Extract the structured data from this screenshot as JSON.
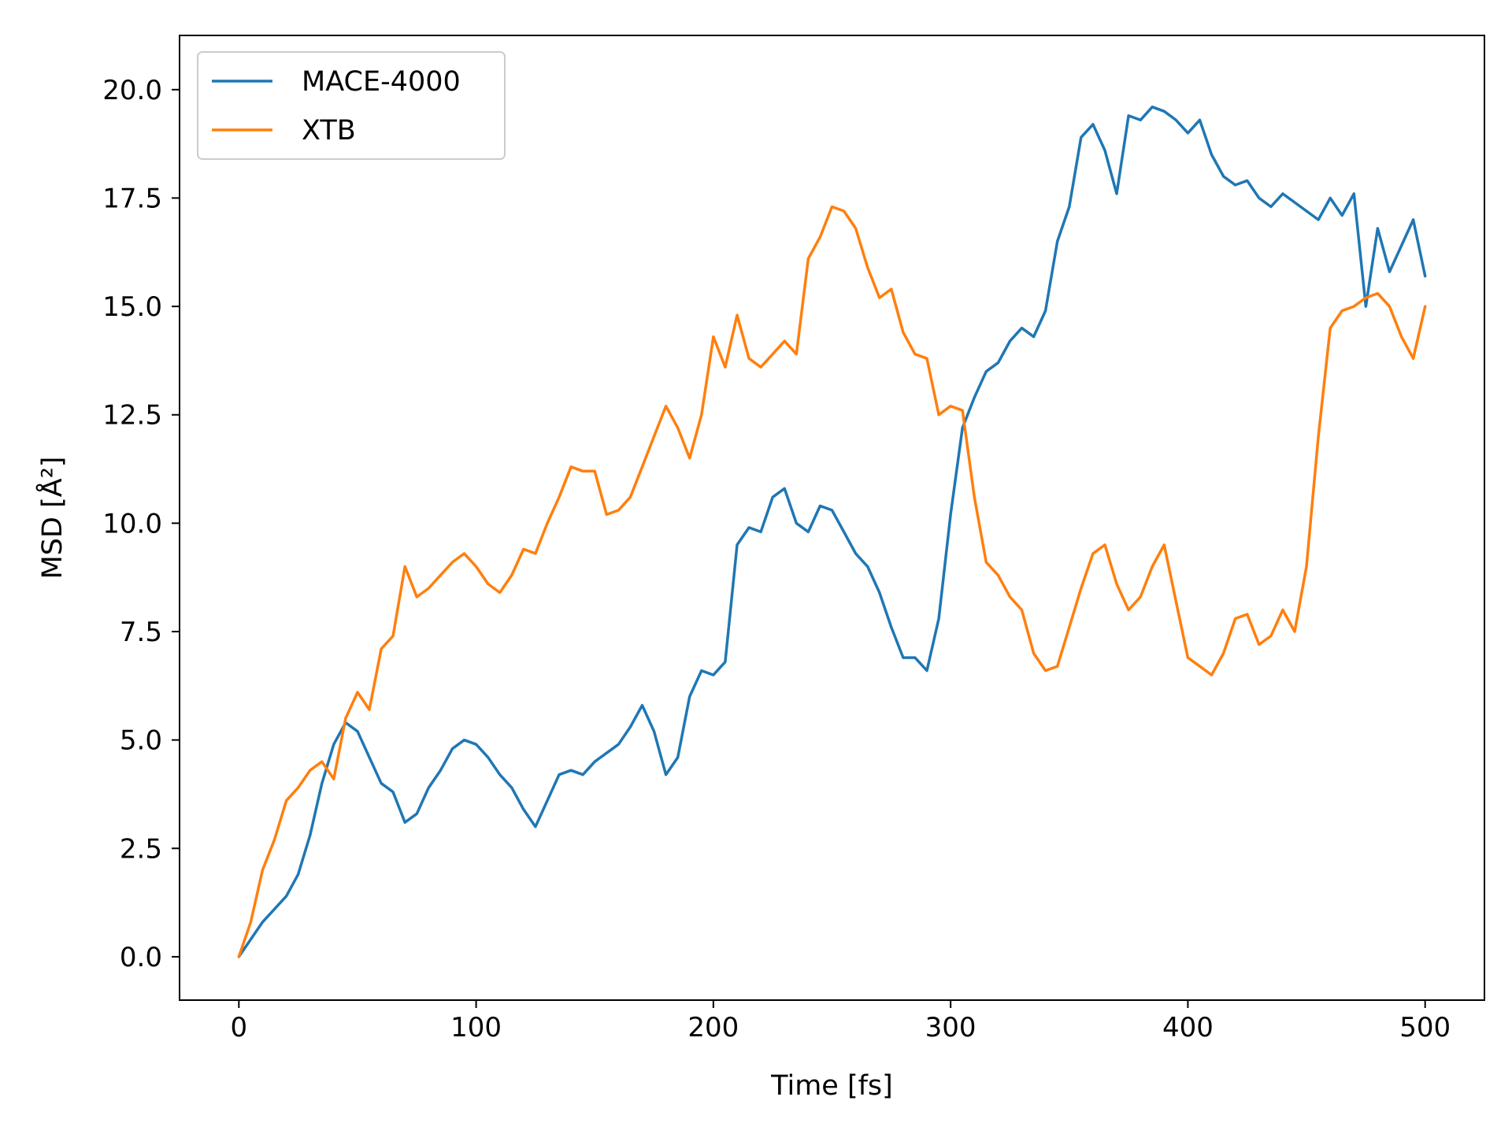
{
  "chart_data": {
    "type": "line",
    "xlabel": "Time [fs]",
    "ylabel": "MSD [Å²]",
    "xlim": [
      -25,
      525
    ],
    "ylim": [
      -1,
      21.25
    ],
    "xticks": [
      0,
      100,
      200,
      300,
      400,
      500
    ],
    "xtick_labels": [
      "0",
      "100",
      "200",
      "300",
      "400",
      "500"
    ],
    "yticks": [
      0,
      2.5,
      5,
      7.5,
      10,
      12.5,
      15,
      17.5,
      20
    ],
    "ytick_labels": [
      "0.0",
      "2.5",
      "5.0",
      "7.5",
      "10.0",
      "12.5",
      "15.0",
      "17.5",
      "20.0"
    ],
    "grid": false,
    "legend_position": "top-left",
    "series": [
      {
        "name": "MACE-4000",
        "color": "#1f77b4",
        "x": [
          0,
          5,
          10,
          15,
          20,
          25,
          30,
          35,
          40,
          45,
          50,
          55,
          60,
          65,
          70,
          75,
          80,
          85,
          90,
          95,
          100,
          105,
          110,
          115,
          120,
          125,
          130,
          135,
          140,
          145,
          150,
          155,
          160,
          165,
          170,
          175,
          180,
          185,
          190,
          195,
          200,
          205,
          210,
          215,
          220,
          225,
          230,
          235,
          240,
          245,
          250,
          255,
          260,
          265,
          270,
          275,
          280,
          285,
          290,
          295,
          300,
          305,
          310,
          315,
          320,
          325,
          330,
          335,
          340,
          345,
          350,
          355,
          360,
          365,
          370,
          375,
          380,
          385,
          390,
          395,
          400,
          405,
          410,
          415,
          420,
          425,
          430,
          435,
          440,
          445,
          450,
          455,
          460,
          465,
          470,
          475,
          480,
          485,
          490,
          495,
          500
        ],
        "y": [
          0.0,
          0.4,
          0.8,
          1.1,
          1.4,
          1.9,
          2.8,
          4.0,
          4.9,
          5.4,
          5.2,
          4.6,
          4.0,
          3.8,
          3.1,
          3.3,
          3.9,
          4.3,
          4.8,
          5.0,
          4.9,
          4.6,
          4.2,
          3.9,
          3.4,
          3.0,
          3.6,
          4.2,
          4.3,
          4.2,
          4.5,
          4.7,
          4.9,
          5.3,
          5.8,
          5.2,
          4.2,
          4.6,
          6.0,
          6.6,
          6.5,
          6.8,
          9.5,
          9.9,
          9.8,
          10.6,
          10.8,
          10.0,
          9.8,
          10.4,
          10.3,
          9.8,
          9.3,
          9.0,
          8.4,
          7.6,
          6.9,
          6.9,
          6.6,
          7.8,
          10.2,
          12.2,
          12.9,
          13.5,
          13.7,
          14.2,
          14.5,
          14.3,
          14.9,
          16.5,
          17.3,
          18.9,
          19.2,
          18.6,
          17.6,
          19.4,
          19.3,
          19.6,
          19.5,
          19.3,
          19.0,
          19.3,
          18.5,
          18.0,
          17.8,
          17.9,
          17.5,
          17.3,
          17.6,
          17.4,
          17.2,
          17.0,
          17.5,
          17.1,
          17.6,
          15.0,
          16.8,
          15.8,
          16.4,
          17.0,
          15.7
        ]
      },
      {
        "name": "XTB",
        "color": "#ff7f0e",
        "x": [
          0,
          5,
          10,
          15,
          20,
          25,
          30,
          35,
          40,
          45,
          50,
          55,
          60,
          65,
          70,
          75,
          80,
          85,
          90,
          95,
          100,
          105,
          110,
          115,
          120,
          125,
          130,
          135,
          140,
          145,
          150,
          155,
          160,
          165,
          170,
          175,
          180,
          185,
          190,
          195,
          200,
          205,
          210,
          215,
          220,
          225,
          230,
          235,
          240,
          245,
          250,
          255,
          260,
          265,
          270,
          275,
          280,
          285,
          290,
          295,
          300,
          305,
          310,
          315,
          320,
          325,
          330,
          335,
          340,
          345,
          350,
          355,
          360,
          365,
          370,
          375,
          380,
          385,
          390,
          395,
          400,
          405,
          410,
          415,
          420,
          425,
          430,
          435,
          440,
          445,
          450,
          455,
          460,
          465,
          470,
          475,
          480,
          485,
          490,
          495,
          500
        ],
        "y": [
          0.0,
          0.8,
          2.0,
          2.7,
          3.6,
          3.9,
          4.3,
          4.5,
          4.1,
          5.5,
          6.1,
          5.7,
          7.1,
          7.4,
          9.0,
          8.3,
          8.5,
          8.8,
          9.1,
          9.3,
          9.0,
          8.6,
          8.4,
          8.8,
          9.4,
          9.3,
          10.0,
          10.6,
          11.3,
          11.2,
          11.2,
          10.2,
          10.3,
          10.6,
          11.3,
          12.0,
          12.7,
          12.2,
          11.5,
          12.5,
          14.3,
          13.6,
          14.8,
          13.8,
          13.6,
          13.9,
          14.2,
          13.9,
          16.1,
          16.6,
          17.3,
          17.2,
          16.8,
          15.9,
          15.2,
          15.4,
          14.4,
          13.9,
          13.8,
          12.5,
          12.7,
          12.6,
          10.6,
          9.1,
          8.8,
          8.3,
          8.0,
          7.0,
          6.6,
          6.7,
          7.6,
          8.5,
          9.3,
          9.5,
          8.6,
          8.0,
          8.3,
          9.0,
          9.5,
          8.2,
          6.9,
          6.7,
          6.5,
          7.0,
          7.8,
          7.9,
          7.2,
          7.4,
          8.0,
          7.5,
          9.0,
          12.0,
          14.5,
          14.9,
          15.0,
          15.2,
          15.3,
          15.0,
          14.3,
          13.8,
          15.0
        ]
      }
    ]
  }
}
